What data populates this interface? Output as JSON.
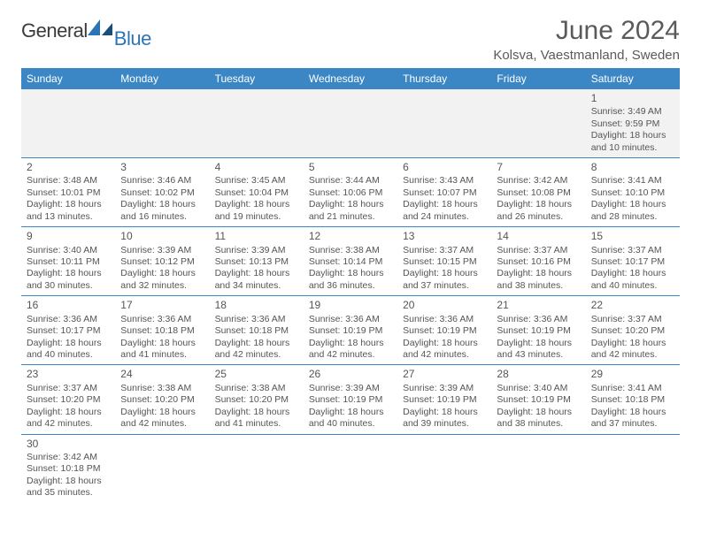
{
  "brand": {
    "part1": "General",
    "part2": "Blue"
  },
  "title": "June 2024",
  "location": "Kolsva, Vaestmanland, Sweden",
  "colors": {
    "header_bg": "#3b86c5",
    "header_text": "#ffffff",
    "rule": "#3b86c5",
    "body_text": "#555555",
    "logo_dark": "#3a3a3a",
    "logo_blue": "#2b74b8",
    "firstrow_bg": "#f2f2f2"
  },
  "weekdays": [
    "Sunday",
    "Monday",
    "Tuesday",
    "Wednesday",
    "Thursday",
    "Friday",
    "Saturday"
  ],
  "weeks": [
    [
      null,
      null,
      null,
      null,
      null,
      null,
      {
        "n": "1",
        "sr": "3:49 AM",
        "ss": "9:59 PM",
        "dl": "18 hours and 10 minutes."
      }
    ],
    [
      {
        "n": "2",
        "sr": "3:48 AM",
        "ss": "10:01 PM",
        "dl": "18 hours and 13 minutes."
      },
      {
        "n": "3",
        "sr": "3:46 AM",
        "ss": "10:02 PM",
        "dl": "18 hours and 16 minutes."
      },
      {
        "n": "4",
        "sr": "3:45 AM",
        "ss": "10:04 PM",
        "dl": "18 hours and 19 minutes."
      },
      {
        "n": "5",
        "sr": "3:44 AM",
        "ss": "10:06 PM",
        "dl": "18 hours and 21 minutes."
      },
      {
        "n": "6",
        "sr": "3:43 AM",
        "ss": "10:07 PM",
        "dl": "18 hours and 24 minutes."
      },
      {
        "n": "7",
        "sr": "3:42 AM",
        "ss": "10:08 PM",
        "dl": "18 hours and 26 minutes."
      },
      {
        "n": "8",
        "sr": "3:41 AM",
        "ss": "10:10 PM",
        "dl": "18 hours and 28 minutes."
      }
    ],
    [
      {
        "n": "9",
        "sr": "3:40 AM",
        "ss": "10:11 PM",
        "dl": "18 hours and 30 minutes."
      },
      {
        "n": "10",
        "sr": "3:39 AM",
        "ss": "10:12 PM",
        "dl": "18 hours and 32 minutes."
      },
      {
        "n": "11",
        "sr": "3:39 AM",
        "ss": "10:13 PM",
        "dl": "18 hours and 34 minutes."
      },
      {
        "n": "12",
        "sr": "3:38 AM",
        "ss": "10:14 PM",
        "dl": "18 hours and 36 minutes."
      },
      {
        "n": "13",
        "sr": "3:37 AM",
        "ss": "10:15 PM",
        "dl": "18 hours and 37 minutes."
      },
      {
        "n": "14",
        "sr": "3:37 AM",
        "ss": "10:16 PM",
        "dl": "18 hours and 38 minutes."
      },
      {
        "n": "15",
        "sr": "3:37 AM",
        "ss": "10:17 PM",
        "dl": "18 hours and 40 minutes."
      }
    ],
    [
      {
        "n": "16",
        "sr": "3:36 AM",
        "ss": "10:17 PM",
        "dl": "18 hours and 40 minutes."
      },
      {
        "n": "17",
        "sr": "3:36 AM",
        "ss": "10:18 PM",
        "dl": "18 hours and 41 minutes."
      },
      {
        "n": "18",
        "sr": "3:36 AM",
        "ss": "10:18 PM",
        "dl": "18 hours and 42 minutes."
      },
      {
        "n": "19",
        "sr": "3:36 AM",
        "ss": "10:19 PM",
        "dl": "18 hours and 42 minutes."
      },
      {
        "n": "20",
        "sr": "3:36 AM",
        "ss": "10:19 PM",
        "dl": "18 hours and 42 minutes."
      },
      {
        "n": "21",
        "sr": "3:36 AM",
        "ss": "10:19 PM",
        "dl": "18 hours and 43 minutes."
      },
      {
        "n": "22",
        "sr": "3:37 AM",
        "ss": "10:20 PM",
        "dl": "18 hours and 42 minutes."
      }
    ],
    [
      {
        "n": "23",
        "sr": "3:37 AM",
        "ss": "10:20 PM",
        "dl": "18 hours and 42 minutes."
      },
      {
        "n": "24",
        "sr": "3:38 AM",
        "ss": "10:20 PM",
        "dl": "18 hours and 42 minutes."
      },
      {
        "n": "25",
        "sr": "3:38 AM",
        "ss": "10:20 PM",
        "dl": "18 hours and 41 minutes."
      },
      {
        "n": "26",
        "sr": "3:39 AM",
        "ss": "10:19 PM",
        "dl": "18 hours and 40 minutes."
      },
      {
        "n": "27",
        "sr": "3:39 AM",
        "ss": "10:19 PM",
        "dl": "18 hours and 39 minutes."
      },
      {
        "n": "28",
        "sr": "3:40 AM",
        "ss": "10:19 PM",
        "dl": "18 hours and 38 minutes."
      },
      {
        "n": "29",
        "sr": "3:41 AM",
        "ss": "10:18 PM",
        "dl": "18 hours and 37 minutes."
      }
    ],
    [
      {
        "n": "30",
        "sr": "3:42 AM",
        "ss": "10:18 PM",
        "dl": "18 hours and 35 minutes."
      },
      null,
      null,
      null,
      null,
      null,
      null
    ]
  ],
  "labels": {
    "sunrise": "Sunrise:",
    "sunset": "Sunset:",
    "daylight": "Daylight:"
  }
}
